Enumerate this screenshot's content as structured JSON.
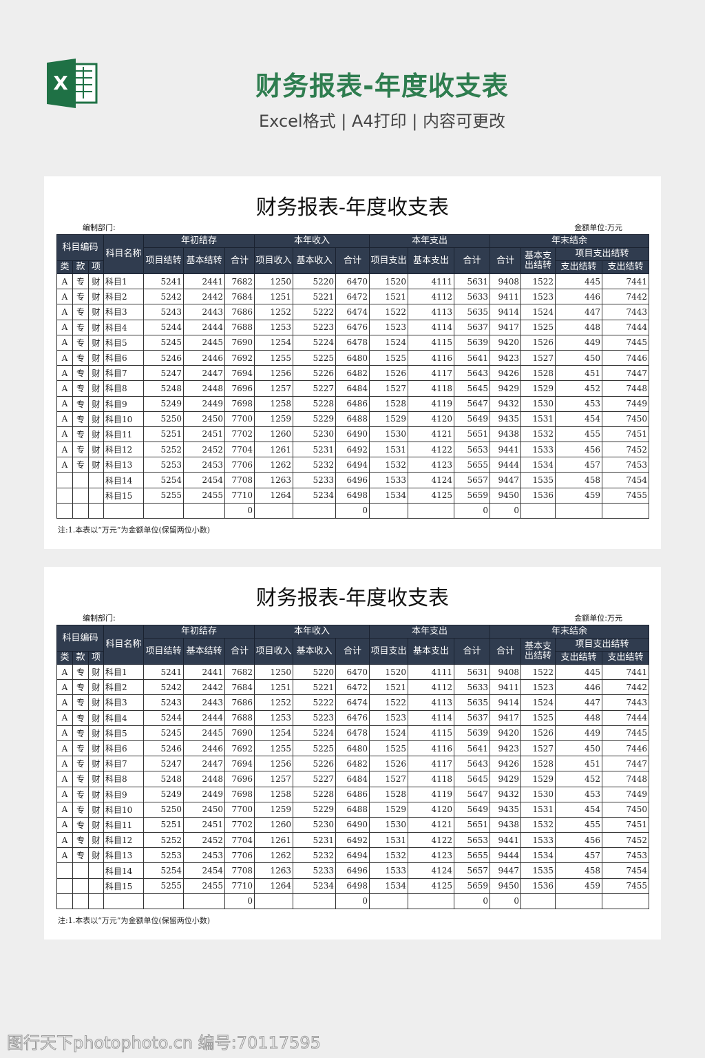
{
  "header": {
    "title": "财务报表-年度收支表",
    "subtitle": "Excel格式 | A4打印 | 内容可更改",
    "logo_letter": "X",
    "brand_color": "#2e7d4f"
  },
  "report": {
    "title": "财务报表-年度收支表",
    "dept_label": "编制部门:",
    "unit_label": "金额单位:万元",
    "headers": {
      "code": "科目编码",
      "name": "科目名称",
      "g1": "年初结存",
      "g2": "本年收入",
      "g3": "本年支出",
      "g4": "年末结余",
      "lei": "类",
      "kuan": "款",
      "xiang": "项",
      "c1": "项目结转",
      "c2": "基本结转",
      "c3": "合计",
      "c4": "项目收入",
      "c5": "基本收入",
      "c6": "合计",
      "c7": "项目支出",
      "c8": "基本支出",
      "c9": "合计",
      "c10": "合计",
      "c11": "基本支出结转",
      "c12group": "项目支出结转",
      "c12": "支出结转",
      "c13": "支出结转"
    },
    "rows": [
      [
        "A",
        "专",
        "财",
        "科目1",
        5241,
        2441,
        7682,
        1250,
        5220,
        6470,
        1520,
        4111,
        5631,
        9408,
        1522,
        445,
        7441
      ],
      [
        "A",
        "专",
        "财",
        "科目2",
        5242,
        2442,
        7684,
        1251,
        5221,
        6472,
        1521,
        4112,
        5633,
        9411,
        1523,
        446,
        7442
      ],
      [
        "A",
        "专",
        "财",
        "科目3",
        5243,
        2443,
        7686,
        1252,
        5222,
        6474,
        1522,
        4113,
        5635,
        9414,
        1524,
        447,
        7443
      ],
      [
        "A",
        "专",
        "财",
        "科目4",
        5244,
        2444,
        7688,
        1253,
        5223,
        6476,
        1523,
        4114,
        5637,
        9417,
        1525,
        448,
        7444
      ],
      [
        "A",
        "专",
        "财",
        "科目5",
        5245,
        2445,
        7690,
        1254,
        5224,
        6478,
        1524,
        4115,
        5639,
        9420,
        1526,
        449,
        7445
      ],
      [
        "A",
        "专",
        "财",
        "科目6",
        5246,
        2446,
        7692,
        1255,
        5225,
        6480,
        1525,
        4116,
        5641,
        9423,
        1527,
        450,
        7446
      ],
      [
        "A",
        "专",
        "财",
        "科目7",
        5247,
        2447,
        7694,
        1256,
        5226,
        6482,
        1526,
        4117,
        5643,
        9426,
        1528,
        451,
        7447
      ],
      [
        "A",
        "专",
        "财",
        "科目8",
        5248,
        2448,
        7696,
        1257,
        5227,
        6484,
        1527,
        4118,
        5645,
        9429,
        1529,
        452,
        7448
      ],
      [
        "A",
        "专",
        "财",
        "科目9",
        5249,
        2449,
        7698,
        1258,
        5228,
        6486,
        1528,
        4119,
        5647,
        9432,
        1530,
        453,
        7449
      ],
      [
        "A",
        "专",
        "财",
        "科目10",
        5250,
        2450,
        7700,
        1259,
        5229,
        6488,
        1529,
        4120,
        5649,
        9435,
        1531,
        454,
        7450
      ],
      [
        "A",
        "专",
        "财",
        "科目11",
        5251,
        2451,
        7702,
        1260,
        5230,
        6490,
        1530,
        4121,
        5651,
        9438,
        1532,
        455,
        7451
      ],
      [
        "A",
        "专",
        "财",
        "科目12",
        5252,
        2452,
        7704,
        1261,
        5231,
        6492,
        1531,
        4122,
        5653,
        9441,
        1533,
        456,
        7452
      ],
      [
        "A",
        "专",
        "财",
        "科目13",
        5253,
        2453,
        7706,
        1262,
        5232,
        6494,
        1532,
        4123,
        5655,
        9444,
        1534,
        457,
        7453
      ],
      [
        "",
        "",
        "",
        "科目14",
        5254,
        2454,
        7708,
        1263,
        5233,
        6496,
        1533,
        4124,
        5657,
        9447,
        1535,
        458,
        7454
      ],
      [
        "",
        "",
        "",
        "科目15",
        5255,
        2455,
        7710,
        1264,
        5234,
        6498,
        1534,
        4125,
        5659,
        9450,
        1536,
        459,
        7455
      ],
      [
        "",
        "",
        "",
        "",
        "",
        "",
        0,
        "",
        "",
        0,
        "",
        "",
        0,
        0,
        "",
        "",
        ""
      ]
    ],
    "note": "注:1.本表以“万元”为金额单位(保留两位小数)"
  },
  "watermark": "图行天下photophoto.cn 编号:70117595"
}
